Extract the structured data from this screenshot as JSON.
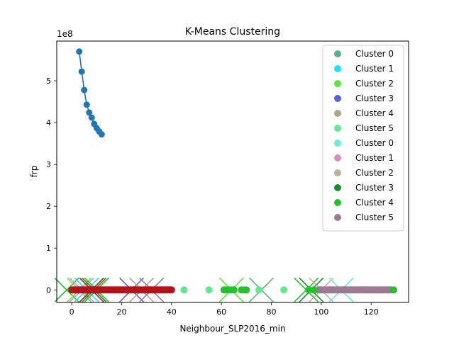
{
  "chart_data": {
    "type": "scatter",
    "title": "K-Means Clustering",
    "xlabel": "Neighbour_SLP2016_min",
    "ylabel": "frp",
    "y_offset_text": "1e8",
    "xlim": [
      -6,
      135
    ],
    "ylim": [
      -30000000.0,
      595000000.0
    ],
    "x_ticks": [
      0,
      20,
      40,
      60,
      80,
      100,
      120
    ],
    "x_tick_labels": [
      "0",
      "20",
      "40",
      "60",
      "80",
      "100",
      "120"
    ],
    "y_ticks": [
      0,
      100000000,
      200000000,
      300000000,
      400000000,
      500000000
    ],
    "y_tick_labels": [
      "0",
      "1",
      "2",
      "3",
      "4",
      "5"
    ],
    "grid": false,
    "legend_position": "top-right",
    "elbow_line": {
      "color": "#1f77b4",
      "x": [
        3,
        4,
        5,
        6,
        7,
        8,
        9,
        10,
        11,
        12
      ],
      "y": [
        570000000,
        522000000,
        478000000,
        443000000,
        424000000,
        412000000,
        397000000,
        387000000,
        379000000,
        372000000
      ]
    },
    "series": [
      {
        "name": "Cluster 0",
        "marker": "circle",
        "color": "#5cb37d"
      },
      {
        "name": "Cluster 1",
        "marker": "circle",
        "color": "#1ee6f0"
      },
      {
        "name": "Cluster 2",
        "marker": "circle",
        "color": "#5ee83a"
      },
      {
        "name": "Cluster 3",
        "marker": "circle",
        "color": "#5a5fe0"
      },
      {
        "name": "Cluster 4",
        "marker": "circle",
        "color": "#a9a886"
      },
      {
        "name": "Cluster 5",
        "marker": "circle",
        "color": "#62e88e"
      },
      {
        "name": "Cluster 0",
        "marker": "circle",
        "color": "#6cebd6"
      },
      {
        "name": "Cluster 1",
        "marker": "circle",
        "color": "#d68fc6"
      },
      {
        "name": "Cluster 2",
        "marker": "circle",
        "color": "#bdb39e"
      },
      {
        "name": "Cluster 3",
        "marker": "circle",
        "color": "#1f8a2c"
      },
      {
        "name": "Cluster 4",
        "marker": "circle",
        "color": "#21c22a"
      },
      {
        "name": "Cluster 5",
        "marker": "circle",
        "color": "#9b7b92"
      }
    ],
    "points": {
      "red_band": {
        "color": "#b5121b",
        "x_range": [
          0,
          40
        ],
        "y": 0
      },
      "extra_points": [
        {
          "x": 45,
          "y": 0,
          "color": "#62e88e"
        },
        {
          "x": 55,
          "y": 0,
          "color": "#62e88e"
        },
        {
          "x": 61,
          "y": 0,
          "color": "#21c22a"
        },
        {
          "x": 62,
          "y": 0,
          "color": "#21c22a"
        },
        {
          "x": 63,
          "y": 0,
          "color": "#21c22a"
        },
        {
          "x": 64,
          "y": 0,
          "color": "#21c22a"
        },
        {
          "x": 65,
          "y": 0,
          "color": "#21c22a"
        },
        {
          "x": 68,
          "y": 0,
          "color": "#21c22a"
        },
        {
          "x": 69,
          "y": 0,
          "color": "#21c22a"
        },
        {
          "x": 70,
          "y": 0,
          "color": "#21c22a"
        },
        {
          "x": 75,
          "y": 0,
          "color": "#62e88e"
        },
        {
          "x": 85,
          "y": 0,
          "color": "#62e88e"
        },
        {
          "x": 95,
          "y": 0,
          "color": "#21c22a"
        },
        {
          "x": 97,
          "y": 0,
          "color": "#21c22a"
        },
        {
          "x": 129,
          "y": 0,
          "color": "#21c22a"
        }
      ],
      "purple_band": {
        "color": "#9b7b92",
        "x_range": [
          99,
          128
        ],
        "y": 0
      }
    },
    "centroid_markers": [
      {
        "x": -2,
        "color": "#21c22a"
      },
      {
        "x": 3,
        "color": "#5ee83a"
      },
      {
        "x": 4,
        "color": "#d68fc6"
      },
      {
        "x": 6,
        "color": "#1ee6f0"
      },
      {
        "x": 8,
        "color": "#b5121b"
      },
      {
        "x": 9,
        "color": "#1f8a2c"
      },
      {
        "x": 10,
        "color": "#21c22a"
      },
      {
        "x": 24,
        "color": "#5a5fe0"
      },
      {
        "x": 28,
        "color": "#a9a886"
      },
      {
        "x": 32,
        "color": "#9b7b92"
      },
      {
        "x": 64,
        "color": "#5ee83a"
      },
      {
        "x": 76,
        "color": "#5cb37d"
      },
      {
        "x": 94,
        "color": "#21c22a"
      },
      {
        "x": 96,
        "color": "#1f8a2c"
      },
      {
        "x": 100,
        "color": "#bdb39e"
      },
      {
        "x": 108,
        "color": "#6cebd6"
      }
    ]
  }
}
